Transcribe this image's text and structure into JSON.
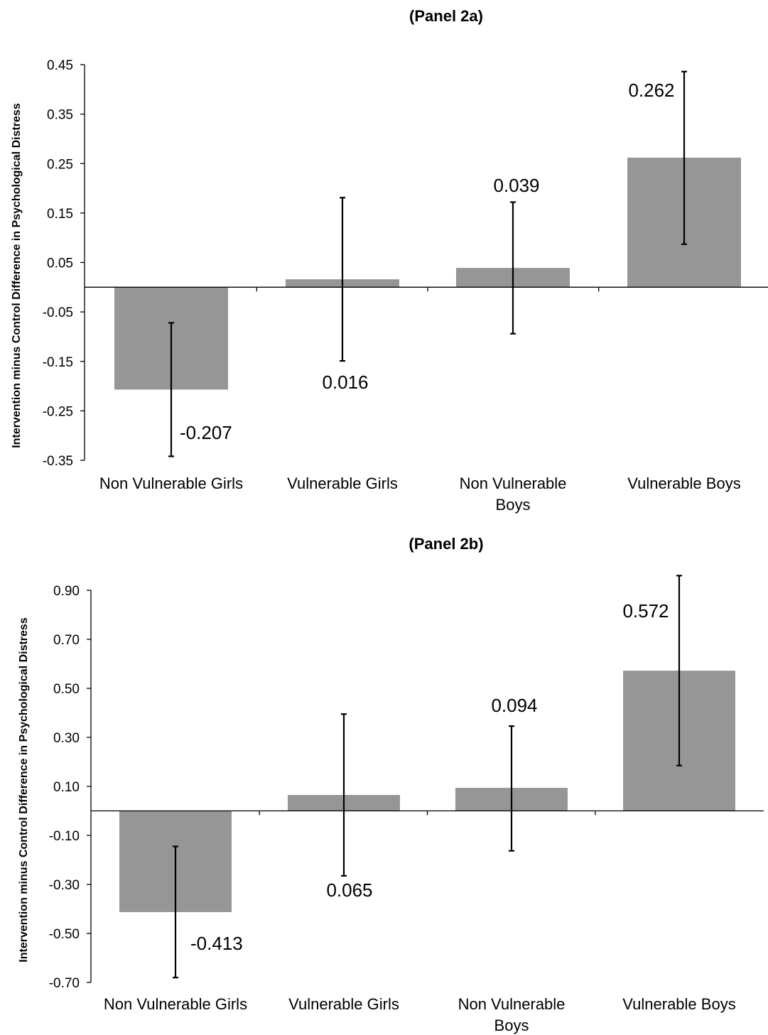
{
  "chart_data": [
    {
      "type": "bar",
      "title": "(Panel 2a)",
      "ylabel": "Intervention minus Control Difference in Psychological Distress",
      "categories": [
        [
          "Non Vulnerable Girls"
        ],
        [
          "Vulnerable Girls"
        ],
        [
          "Non Vulnerable",
          "Boys"
        ],
        [
          "Vulnerable Boys"
        ]
      ],
      "values": [
        -0.207,
        0.016,
        0.039,
        0.262
      ],
      "value_labels": [
        "-0.207",
        "0.016",
        "0.039",
        "0.262"
      ],
      "error_low": [
        -0.342,
        -0.149,
        -0.094,
        0.087
      ],
      "error_high": [
        -0.072,
        0.181,
        0.172,
        0.436
      ],
      "yticks": [
        "0.45",
        "0.35",
        "0.25",
        "0.15",
        "0.05",
        "-0.05",
        "-0.15",
        "-0.25",
        "-0.35"
      ],
      "ylim": [
        -0.35,
        0.45
      ],
      "grid": false,
      "bar_color": "#969696"
    },
    {
      "type": "bar",
      "title": "(Panel 2b)",
      "ylabel": "Intervention minus Control Difference in Psychological Distress",
      "categories": [
        [
          "Non Vulnerable Girls"
        ],
        [
          "Vulnerable Girls"
        ],
        [
          "Non Vulnerable",
          "Boys"
        ],
        [
          "Vulnerable Boys"
        ]
      ],
      "values": [
        -0.413,
        0.065,
        0.094,
        0.572
      ],
      "value_labels": [
        "-0.413",
        "0.065",
        "0.094",
        "0.572"
      ],
      "error_low": [
        -0.68,
        -0.265,
        -0.163,
        0.185
      ],
      "error_high": [
        -0.145,
        0.395,
        0.346,
        0.96
      ],
      "yticks": [
        "0.90",
        "0.70",
        "0.50",
        "0.30",
        "0.10",
        "-0.10",
        "-0.30",
        "-0.50",
        "-0.70"
      ],
      "ylim": [
        -0.7,
        0.9
      ],
      "grid": false,
      "bar_color": "#969696"
    }
  ]
}
